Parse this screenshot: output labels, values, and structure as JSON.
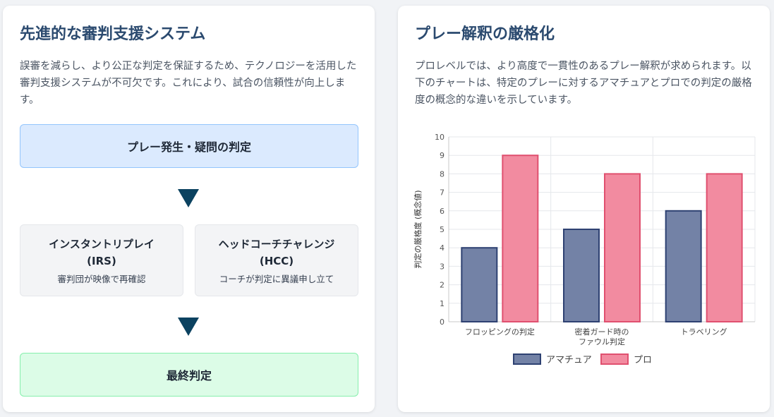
{
  "left_card": {
    "title": "先進的な審判支援システム",
    "description": "誤審を減らし、より公正な判定を保証するため、テクノロジーを活用した審判支援システムが不可欠です。これにより、試合の信頼性が向上します。",
    "flow": {
      "start": "プレー発生・疑問の判定",
      "irs": {
        "title_line1": "インスタントリプレイ",
        "title_line2": "(IRS)",
        "caption": "審判団が映像で再確認"
      },
      "hcc": {
        "title_line1": "ヘッドコーチチャレンジ",
        "title_line2": "(HCC)",
        "caption": "コーチが判定に異議申し立て"
      },
      "end": "最終判定"
    }
  },
  "right_card": {
    "title": "プレー解釈の厳格化",
    "description": "プロレベルでは、より高度で一貫性のあるプレー解釈が求められます。以下のチャートは、特定のプレーに対するアマチュアとプロでの判定の厳格度の概念的な違いを示しています。"
  },
  "colors": {
    "amateur_fill": "#7382a6",
    "amateur_stroke": "#2e4172",
    "pro_fill": "#f28ba0",
    "pro_stroke": "#e0506f",
    "arrow": "#0b4260"
  },
  "chart_data": {
    "type": "bar",
    "categories": [
      [
        "フロッピングの判定"
      ],
      [
        "密着ガード時の",
        "ファウル判定"
      ],
      [
        "トラベリング"
      ]
    ],
    "series": [
      {
        "name": "アマチュア",
        "values": [
          4,
          5,
          6
        ]
      },
      {
        "name": "プロ",
        "values": [
          9,
          8,
          8
        ]
      }
    ],
    "ylabel": "判定の厳格度 (概念値)",
    "ylim": [
      0,
      10
    ],
    "yticks": [
      0,
      1,
      2,
      3,
      4,
      5,
      6,
      7,
      8,
      9,
      10
    ],
    "grid": true,
    "legend": "bottom"
  }
}
